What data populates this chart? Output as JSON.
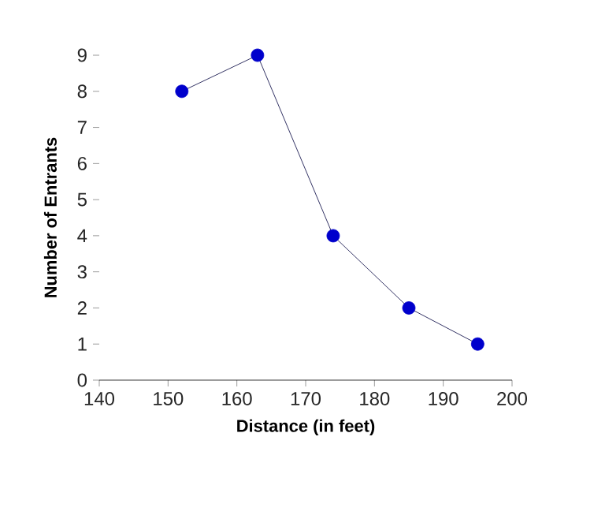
{
  "chart_data": {
    "type": "line",
    "xlabel": "Distance (in feet)",
    "ylabel": "Number of Entrants",
    "x": [
      152,
      163,
      174,
      185,
      195
    ],
    "series": [
      {
        "color": "#0000cc",
        "values": [
          8,
          9,
          4,
          2,
          1
        ]
      }
    ],
    "xlim": [
      140,
      200
    ],
    "ylim": [
      0,
      9
    ],
    "xticks": [
      140,
      150,
      160,
      170,
      180,
      190,
      200
    ],
    "yticks": [
      0,
      1,
      2,
      3,
      4,
      5,
      6,
      7,
      8,
      9
    ],
    "marker": "circle",
    "line_style": "solid"
  }
}
